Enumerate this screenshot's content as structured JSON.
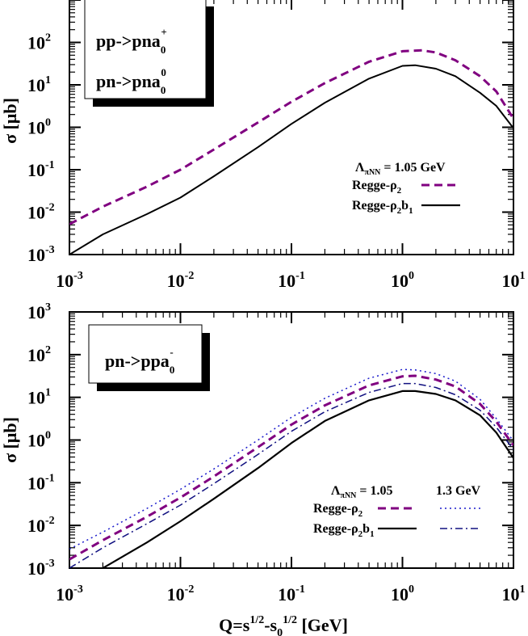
{
  "chart_data": [
    {
      "type": "line",
      "xscale": "log",
      "yscale": "log",
      "xlim": [
        0.001,
        10
      ],
      "ylim": [
        0.001,
        1000
      ],
      "ylabel": "σ [μb]",
      "xlabel": "",
      "x_tick_labels": [
        {
          "base": "10",
          "exp": "-3"
        },
        {
          "base": "10",
          "exp": "-2"
        },
        {
          "base": "10",
          "exp": "-1"
        },
        {
          "base": "10",
          "exp": "0"
        },
        {
          "base": "10",
          "exp": "1"
        }
      ],
      "y_tick_labels": [
        {
          "base": "10",
          "exp": "-3"
        },
        {
          "base": "10",
          "exp": "-2"
        },
        {
          "base": "10",
          "exp": "-1"
        },
        {
          "base": "10",
          "exp": "0"
        },
        {
          "base": "10",
          "exp": "1"
        },
        {
          "base": "10",
          "exp": "2"
        }
      ],
      "reaction_box": {
        "lines": [
          {
            "text": "pp->pna",
            "sub": "0",
            "sup": "+"
          },
          {
            "text": "pn->pna",
            "sub": "0",
            "sup": "0"
          }
        ]
      },
      "legend": {
        "lambda_symbol": "Λ",
        "lambda_sub": "πNN",
        "lambda_value": "=  1.05 GeV",
        "entries": [
          {
            "label": "Regge-ρ",
            "sub": "2",
            "tail": "",
            "style": "dashed",
            "color": "#800080"
          },
          {
            "label": "Regge-ρ",
            "sub": "2",
            "tail": "b",
            "tail_sub": "1",
            "style": "solid",
            "color": "#000000"
          }
        ]
      },
      "series": [
        {
          "name": "Regge-ρ2",
          "style": "dashed",
          "color": "#800080",
          "width": 3,
          "points": [
            [
              0.001,
              0.0052
            ],
            [
              0.002,
              0.0135
            ],
            [
              0.005,
              0.04
            ],
            [
              0.01,
              0.1
            ],
            [
              0.02,
              0.3
            ],
            [
              0.05,
              1.3
            ],
            [
              0.1,
              4.0
            ],
            [
              0.2,
              11
            ],
            [
              0.5,
              35
            ],
            [
              1.0,
              62
            ],
            [
              1.5,
              65
            ],
            [
              2.0,
              58
            ],
            [
              3.0,
              38
            ],
            [
              5.0,
              16
            ],
            [
              7.0,
              7
            ],
            [
              10.0,
              1.6
            ]
          ]
        },
        {
          "name": "Regge-ρ2b1",
          "style": "solid",
          "color": "#000000",
          "width": 2,
          "points": [
            [
              0.001,
              0.001
            ],
            [
              0.002,
              0.003
            ],
            [
              0.005,
              0.009
            ],
            [
              0.01,
              0.022
            ],
            [
              0.02,
              0.07
            ],
            [
              0.05,
              0.34
            ],
            [
              0.1,
              1.2
            ],
            [
              0.2,
              3.8
            ],
            [
              0.5,
              14
            ],
            [
              1.0,
              28
            ],
            [
              1.3,
              29
            ],
            [
              2.0,
              24
            ],
            [
              3.0,
              16
            ],
            [
              5.0,
              6.5
            ],
            [
              7.0,
              3.2
            ],
            [
              10.0,
              0.95
            ]
          ]
        }
      ]
    },
    {
      "type": "line",
      "xscale": "log",
      "yscale": "log",
      "xlim": [
        0.001,
        10
      ],
      "ylim": [
        0.001,
        1000
      ],
      "ylabel": "σ [μb]",
      "xlabel": {
        "q": "Q=s",
        "sup1": "1/2",
        "mid": "-s",
        "sub": "0",
        "sup2": "1/2",
        "tail": " [GeV]"
      },
      "x_tick_labels": [
        {
          "base": "10",
          "exp": "-3"
        },
        {
          "base": "10",
          "exp": "-2"
        },
        {
          "base": "10",
          "exp": "-1"
        },
        {
          "base": "10",
          "exp": "0"
        },
        {
          "base": "10",
          "exp": "1"
        }
      ],
      "y_tick_labels": [
        {
          "base": "10",
          "exp": "-3"
        },
        {
          "base": "10",
          "exp": "-2"
        },
        {
          "base": "10",
          "exp": "-1"
        },
        {
          "base": "10",
          "exp": "0"
        },
        {
          "base": "10",
          "exp": "1"
        },
        {
          "base": "10",
          "exp": "2"
        },
        {
          "base": "10",
          "exp": "3"
        }
      ],
      "reaction_box": {
        "lines": [
          {
            "text": "pn->ppa",
            "sub": "0",
            "sup": "-"
          }
        ]
      },
      "legend": {
        "lambda_symbol": "Λ",
        "lambda_sub": "πNN",
        "lambda_value": "=  1.05",
        "lambda_value2": "1.3 GeV",
        "entries": [
          {
            "label": "Regge-ρ",
            "sub": "2",
            "tail": "",
            "style": "dashed",
            "color": "#800080",
            "style2": "dotted",
            "color2": "#1a1acc"
          },
          {
            "label": "Regge-ρ",
            "sub": "2",
            "tail": "b",
            "tail_sub": "1",
            "style": "solid",
            "color": "#000000",
            "style2": "dashdot",
            "color2": "#101080"
          }
        ]
      },
      "series": [
        {
          "name": "Regge-ρ2 (1.3 GeV)",
          "style": "dotted",
          "color": "#1a1acc",
          "width": 1.5,
          "points": [
            [
              0.001,
              0.0028
            ],
            [
              0.002,
              0.007
            ],
            [
              0.005,
              0.025
            ],
            [
              0.01,
              0.07
            ],
            [
              0.02,
              0.21
            ],
            [
              0.05,
              1.0
            ],
            [
              0.1,
              3.4
            ],
            [
              0.2,
              9.5
            ],
            [
              0.5,
              28
            ],
            [
              1.0,
              45
            ],
            [
              1.3,
              44
            ],
            [
              2.0,
              36
            ],
            [
              3.0,
              24
            ],
            [
              5.0,
              9
            ],
            [
              7.0,
              3.2
            ],
            [
              10.0,
              0.95
            ]
          ]
        },
        {
          "name": "Regge-ρ2 (1.05)",
          "style": "dashed",
          "color": "#800080",
          "width": 3,
          "points": [
            [
              0.001,
              0.0016
            ],
            [
              0.002,
              0.0045
            ],
            [
              0.005,
              0.016
            ],
            [
              0.01,
              0.045
            ],
            [
              0.02,
              0.14
            ],
            [
              0.05,
              0.68
            ],
            [
              0.1,
              2.3
            ],
            [
              0.2,
              6.5
            ],
            [
              0.5,
              19
            ],
            [
              1.0,
              31
            ],
            [
              1.3,
              32
            ],
            [
              2.0,
              26
            ],
            [
              3.0,
              18
            ],
            [
              5.0,
              7
            ],
            [
              7.0,
              2.7
            ],
            [
              10.0,
              0.75
            ]
          ]
        },
        {
          "name": "Regge-ρ2b1 (1.3 GeV)",
          "style": "dashdot",
          "color": "#101080",
          "width": 1.5,
          "points": [
            [
              0.001,
              0.001
            ],
            [
              0.002,
              0.003
            ],
            [
              0.005,
              0.011
            ],
            [
              0.01,
              0.03
            ],
            [
              0.02,
              0.095
            ],
            [
              0.05,
              0.46
            ],
            [
              0.1,
              1.6
            ],
            [
              0.2,
              4.6
            ],
            [
              0.5,
              13
            ],
            [
              1.0,
              21
            ],
            [
              1.3,
              21
            ],
            [
              2.0,
              17
            ],
            [
              3.0,
              11.5
            ],
            [
              5.0,
              5
            ],
            [
              7.0,
              2.0
            ],
            [
              10.0,
              0.6
            ]
          ]
        },
        {
          "name": "Regge-ρ2b1 (1.05)",
          "style": "solid",
          "color": "#000000",
          "width": 2.2,
          "points": [
            [
              0.002,
              0.001
            ],
            [
              0.005,
              0.004
            ],
            [
              0.01,
              0.0125
            ],
            [
              0.02,
              0.042
            ],
            [
              0.05,
              0.22
            ],
            [
              0.1,
              0.85
            ],
            [
              0.2,
              2.8
            ],
            [
              0.5,
              8.5
            ],
            [
              1.0,
              14
            ],
            [
              1.3,
              14
            ],
            [
              2.0,
              12
            ],
            [
              3.0,
              8.5
            ],
            [
              5.0,
              3.8
            ],
            [
              7.0,
              1.5
            ],
            [
              10.0,
              0.38
            ]
          ]
        }
      ]
    }
  ]
}
